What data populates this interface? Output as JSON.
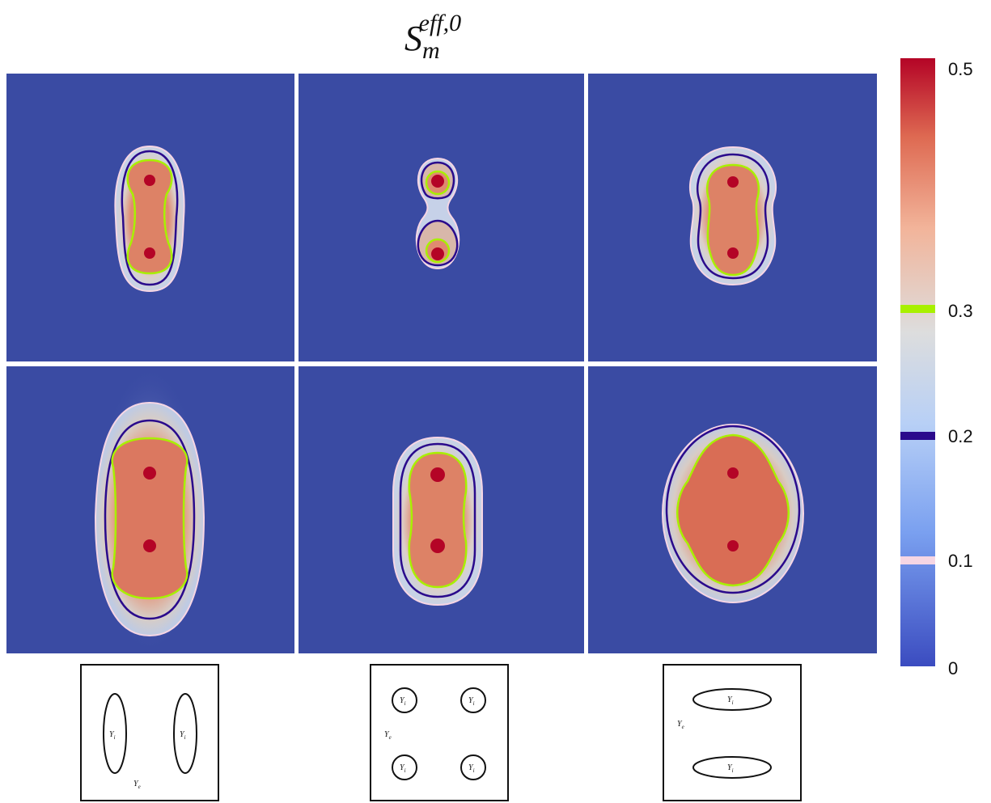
{
  "title": {
    "base": "S",
    "superscript": "eff,0",
    "subscript": "m"
  },
  "colorbar": {
    "min_label": "0",
    "max_label": "0.5",
    "ticks": [
      {
        "label": "0.5",
        "value": 0.5
      },
      {
        "label": "0.3",
        "value": 0.3
      },
      {
        "label": "0.2",
        "value": 0.2
      },
      {
        "label": "0.1",
        "value": 0.1
      },
      {
        "label": "0",
        "value": 0.0
      }
    ],
    "contour_levels": [
      {
        "value": 0.3,
        "color": "#a8f000"
      },
      {
        "value": 0.2,
        "color": "#2a0a8c"
      },
      {
        "value": 0.1,
        "color": "#f6d6e4"
      }
    ],
    "colors": {
      "low": "#3b4aa0",
      "mid": "#dcdcdc",
      "high": "#b40426"
    }
  },
  "cell_labels": {
    "interior": "Y",
    "interior_sub": "i",
    "exterior": "Y",
    "exterior_sub": "e"
  }
}
